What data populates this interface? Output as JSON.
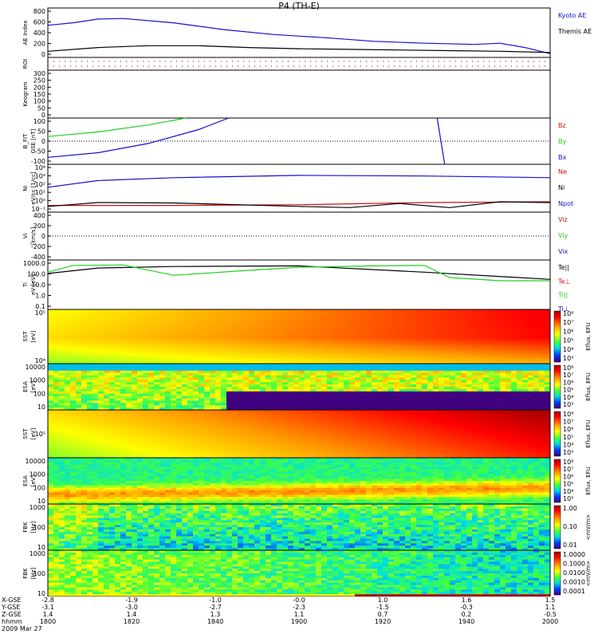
{
  "title": "P4 (TH-E)",
  "colors": {
    "blue": "#1010d0",
    "black": "#000000",
    "red": "#d01010",
    "green": "#20d020"
  },
  "panels": [
    {
      "id": "ae",
      "ylabel": "AE Index",
      "unit": "",
      "ticks": [
        "800",
        "600",
        "400",
        "200",
        "0"
      ],
      "legend": [
        {
          "text": "Kyoto AE",
          "color": "#1010d0"
        },
        {
          "text": "Themis AE",
          "color": "#000000"
        }
      ]
    },
    {
      "id": "roi",
      "ylabel": "ROI",
      "unit": "",
      "ticks": [],
      "legend": []
    },
    {
      "id": "keo",
      "ylabel": "Keogram",
      "unit": "",
      "ticks": [
        "300",
        "250",
        "200",
        "150",
        "100",
        "50",
        "0"
      ],
      "legend": []
    },
    {
      "id": "bfit",
      "ylabel": "B_FIT",
      "unit": "GSE [nT]",
      "ticks": [
        "100",
        "50",
        "0",
        "-50",
        "-100"
      ],
      "legend": [
        {
          "text": "Bz",
          "color": "#d01010"
        },
        {
          "text": "By",
          "color": "#20d020"
        },
        {
          "text": "Bx",
          "color": "#1010d0"
        }
      ]
    },
    {
      "id": "ni",
      "ylabel": "Ni",
      "unit": "eV/cc [1/cc]",
      "ticks": [
        "10⁴",
        "10³",
        "10²",
        "10¹",
        "10⁰",
        "10⁻¹"
      ],
      "legend": [
        {
          "text": "Ne",
          "color": "#d01010"
        },
        {
          "text": "Ni",
          "color": "#000000"
        },
        {
          "text": "Npot",
          "color": "#1010d0"
        }
      ]
    },
    {
      "id": "vi",
      "ylabel": "Vi",
      "unit": "[km/s]",
      "ticks": [
        "400",
        "200",
        "0",
        "-200",
        "-400"
      ],
      "legend": [
        {
          "text": "Viz",
          "color": "#d01010"
        },
        {
          "text": "Viy",
          "color": "#20d020"
        },
        {
          "text": "Vix",
          "color": "#1010d0"
        }
      ]
    },
    {
      "id": "ti",
      "ylabel": "Ti",
      "unit": "eV [eV]",
      "ticks": [
        "1000.0",
        "100.0",
        "10.0",
        "1.0",
        "0.1"
      ],
      "legend": [
        {
          "text": "Te||",
          "color": "#000000"
        },
        {
          "text": "Te⊥",
          "color": "#d01010"
        },
        {
          "text": "Ti||",
          "color": "#20d020"
        },
        {
          "text": "Ti⊥",
          "color": "#1010d0"
        }
      ]
    },
    {
      "id": "sst1",
      "ylabel": "SST",
      "unit": "[eV]",
      "ticks": [
        "10⁵",
        "10⁴"
      ],
      "legend": [],
      "spec": "sstA",
      "cb": [
        "10⁸",
        "10⁷",
        "10⁶",
        "10⁵",
        "10⁴",
        "10³"
      ],
      "cbTitle": "Eflux, EFU"
    },
    {
      "id": "esa1",
      "ylabel": "ESA",
      "unit": "[eV]",
      "ticks": [
        "10000",
        "1000",
        "100",
        "10"
      ],
      "legend": [],
      "spec": "esaA",
      "cb": [
        "10⁸",
        "10⁷",
        "10⁶",
        "10⁵",
        "10⁴",
        "10³"
      ],
      "cbTitle": "Eflux, EFU"
    },
    {
      "id": "sst2",
      "ylabel": "SST",
      "unit": "[eV]",
      "ticks": [
        "10⁵"
      ],
      "legend": [],
      "spec": "sstB",
      "cb": [
        "10⁸",
        "10⁷",
        "10⁶",
        "10⁵",
        "10⁴",
        "10³"
      ],
      "cbTitle": "Eflux, EFU"
    },
    {
      "id": "esa2",
      "ylabel": "ESA",
      "unit": "[eV]",
      "ticks": [
        "10000",
        "1000",
        "100",
        "10"
      ],
      "legend": [],
      "spec": "esaB",
      "cb": [
        "10⁸",
        "10⁷",
        "10⁶",
        "10⁵",
        "10⁴",
        "10³"
      ],
      "cbTitle": "Eflux, EFU"
    },
    {
      "id": "fbk1",
      "ylabel": "FBK",
      "unit": "[Hz]",
      "ticks": [
        "1000",
        "100",
        "10"
      ],
      "legend": [],
      "spec": "fbkA",
      "cb": [
        "1.00",
        "0.10",
        "0.01"
      ],
      "cbTitle": "<mV/m>"
    },
    {
      "id": "fbk2",
      "ylabel": "FBK",
      "unit": "[Hz]",
      "ticks": [
        "1000",
        "100",
        "10"
      ],
      "legend": [],
      "spec": "fbkB",
      "cb": [
        "1.0000",
        "0.1000",
        "0.0100",
        "0.0010",
        "0.0001"
      ],
      "cbTitle": "<mV/m>"
    }
  ],
  "chart_data": {
    "type": "line",
    "title": "P4 (TH-E)",
    "date": "2009 Mar 27",
    "x_rows": [
      {
        "name": "X-GSE",
        "values": [
          "-2.8",
          "-1.9",
          "-1.0",
          "-0.0",
          "1.0",
          "1.6",
          "1.5"
        ]
      },
      {
        "name": "Y-GSE",
        "values": [
          "-3.1",
          "-3.0",
          "-2.7",
          "-2.3",
          "-1.5",
          "-0.3",
          "1.1"
        ]
      },
      {
        "name": "Z-GSE",
        "values": [
          "1.4",
          "1.4",
          "1.3",
          "1.1",
          "0.7",
          "0.2",
          "-0.5"
        ]
      },
      {
        "name": "hhmm",
        "values": [
          "1800",
          "1820",
          "1840",
          "1900",
          "1920",
          "1940",
          "2000"
        ]
      }
    ],
    "time_range_hours": [
      18.0,
      20.0
    ],
    "ae": {
      "ylim": [
        0,
        800
      ],
      "series": [
        {
          "name": "Kyoto AE",
          "x": [
            18.0,
            18.1,
            18.2,
            18.3,
            18.5,
            18.7,
            18.9,
            19.1,
            19.3,
            19.5,
            19.7,
            19.8,
            19.9,
            20.0
          ],
          "y": [
            520,
            560,
            620,
            630,
            560,
            450,
            370,
            320,
            260,
            230,
            210,
            230,
            160,
            60
          ]
        },
        {
          "name": "Themis AE",
          "x": [
            18.0,
            18.2,
            18.4,
            18.6,
            18.8,
            19.0,
            19.2,
            19.4,
            19.6,
            19.8,
            20.0
          ],
          "y": [
            100,
            160,
            190,
            190,
            160,
            140,
            130,
            120,
            110,
            100,
            80
          ]
        }
      ]
    },
    "bfit": {
      "ylim": [
        -100,
        100
      ],
      "series": [
        {
          "name": "By",
          "x": [
            18.0,
            18.2,
            18.4,
            18.55
          ],
          "y": [
            20,
            40,
            70,
            100
          ]
        },
        {
          "name": "Bx",
          "x": [
            18.0,
            18.2,
            18.4,
            18.6,
            18.72
          ],
          "y": [
            -70,
            -50,
            -10,
            50,
            100
          ]
        },
        {
          "name": "Bx",
          "x": [
            19.55,
            19.58
          ],
          "y": [
            100,
            -100
          ]
        }
      ]
    },
    "ni": {
      "ylim": [
        0.1,
        10000
      ],
      "log": true,
      "series": [
        {
          "name": "Npot",
          "x": [
            18.0,
            18.2,
            18.5,
            19.0,
            19.5,
            20.0
          ],
          "y": [
            40,
            200,
            400,
            700,
            600,
            400
          ]
        },
        {
          "name": "Ne",
          "x": [
            18.0,
            18.5,
            19.0,
            19.5,
            20.0
          ],
          "y": [
            0.5,
            0.5,
            0.6,
            1.0,
            1.2
          ]
        },
        {
          "name": "Ni",
          "x": [
            18.0,
            18.2,
            18.5,
            19.0,
            19.2,
            19.4,
            19.6,
            19.8,
            20.0
          ],
          "y": [
            0.4,
            1.0,
            0.9,
            0.4,
            0.3,
            0.8,
            0.3,
            1.2,
            1.0
          ]
        }
      ]
    },
    "vi": {
      "ylim": [
        -500,
        500
      ],
      "series": []
    },
    "ti": {
      "ylim": [
        0.05,
        3000
      ],
      "log": true,
      "series": [
        {
          "name": "Te||",
          "x": [
            18.0,
            18.2,
            18.5,
            19.0,
            19.5,
            20.0
          ],
          "y": [
            150,
            500,
            700,
            800,
            200,
            40
          ]
        },
        {
          "name": "Ti||",
          "x": [
            18.0,
            18.1,
            18.3,
            18.5,
            18.8,
            19.0,
            19.3,
            19.5,
            19.6,
            19.8,
            20.0
          ],
          "y": [
            200,
            900,
            1000,
            100,
            300,
            600,
            800,
            900,
            60,
            30,
            30
          ]
        }
      ]
    }
  }
}
